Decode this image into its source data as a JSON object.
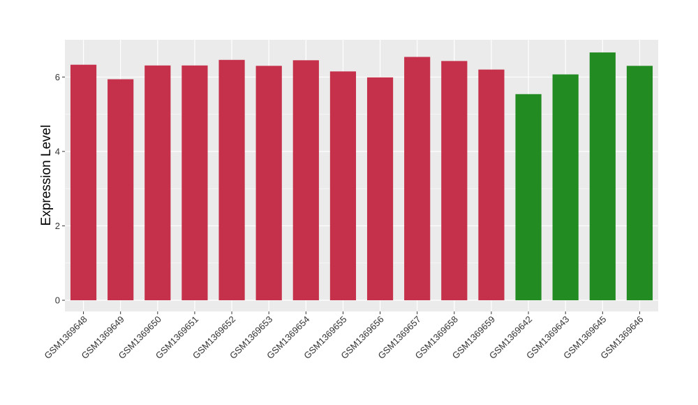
{
  "chart_data": {
    "type": "bar",
    "title": "",
    "xlabel": "",
    "ylabel": "Expression Level",
    "ylim": [
      -0.3,
      7.0
    ],
    "yticks": [
      0,
      2,
      4,
      6
    ],
    "grid": true,
    "categories": [
      "GSM1369648",
      "GSM1369649",
      "GSM1369650",
      "GSM1369651",
      "GSM1369652",
      "GSM1369653",
      "GSM1369654",
      "GSM1369655",
      "GSM1369656",
      "GSM1369657",
      "GSM1369658",
      "GSM1369659",
      "GSM1369642",
      "GSM1369643",
      "GSM1369645",
      "GSM1369646"
    ],
    "values": [
      6.33,
      5.94,
      6.31,
      6.31,
      6.46,
      6.3,
      6.45,
      6.15,
      5.99,
      6.54,
      6.43,
      6.2,
      5.54,
      6.07,
      6.66,
      6.3
    ],
    "groups": [
      0,
      0,
      0,
      0,
      0,
      0,
      0,
      0,
      0,
      0,
      0,
      0,
      1,
      1,
      1,
      1
    ],
    "group_colors": [
      "#c5304a",
      "#228b22"
    ],
    "panel_background": "#ebebeb",
    "gridline_color": "#ffffff"
  }
}
